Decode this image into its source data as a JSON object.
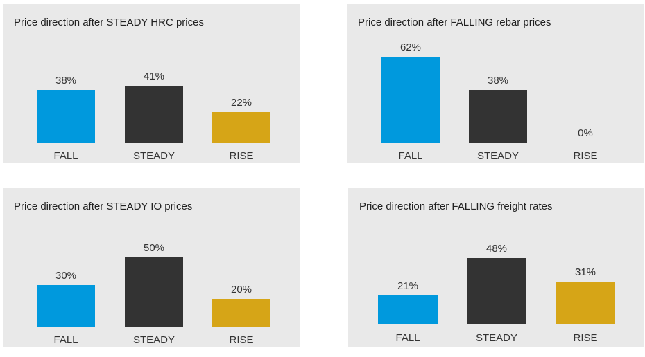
{
  "colors": {
    "fall": "#0099dd",
    "steady": "#333333",
    "rise": "#d6a517",
    "panel_bg": "#e9e9e9",
    "text": "#333333"
  },
  "chart_data": [
    {
      "type": "bar",
      "title": "Price direction after STEADY HRC prices",
      "categories": [
        "FALL",
        "STEADY",
        "RISE"
      ],
      "values": [
        38,
        41,
        22
      ],
      "value_labels": [
        "38%",
        "41%",
        "22%"
      ],
      "ylim": [
        0,
        62
      ]
    },
    {
      "type": "bar",
      "title": "Price direction after FALLING rebar prices",
      "categories": [
        "FALL",
        "STEADY",
        "RISE"
      ],
      "values": [
        62,
        38,
        0
      ],
      "value_labels": [
        "62%",
        "38%",
        "0%"
      ],
      "ylim": [
        0,
        62
      ]
    },
    {
      "type": "bar",
      "title": "Price direction after STEADY IO prices",
      "categories": [
        "FALL",
        "STEADY",
        "RISE"
      ],
      "values": [
        30,
        50,
        20
      ],
      "value_labels": [
        "30%",
        "50%",
        "20%"
      ],
      "ylim": [
        0,
        62
      ]
    },
    {
      "type": "bar",
      "title": "Price direction after FALLING freight rates",
      "categories": [
        "FALL",
        "STEADY",
        "RISE"
      ],
      "values": [
        21,
        48,
        31
      ],
      "value_labels": [
        "21%",
        "48%",
        "31%"
      ],
      "ylim": [
        0,
        62
      ]
    }
  ]
}
